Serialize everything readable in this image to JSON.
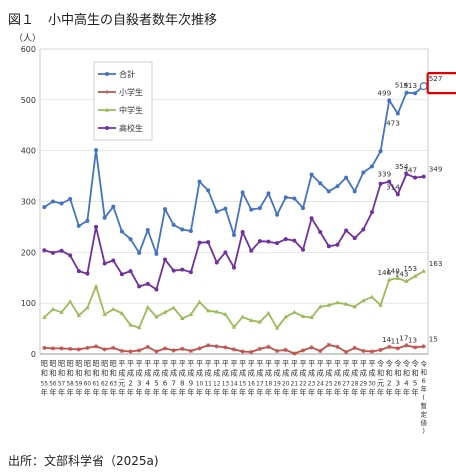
{
  "figure": {
    "number": "図１",
    "title": "小中高生の自殺者数年次推移",
    "source": "出所：文部科学省（2025a)"
  },
  "chart_data": {
    "type": "line",
    "yunit": "（人）",
    "ylim": [
      0,
      600
    ],
    "yticks": [
      0,
      100,
      200,
      300,
      400,
      500,
      600
    ],
    "grid": true,
    "legend_position": "top-left",
    "x": [
      "昭和55年",
      "昭和56年",
      "昭和57年",
      "昭和58年",
      "昭和59年",
      "昭和60年",
      "昭和61年",
      "昭和62年",
      "昭和63年",
      "平成元年",
      "平成2年",
      "平成3年",
      "平成4年",
      "平成5年",
      "平成6年",
      "平成7年",
      "平成8年",
      "平成9年",
      "平成10年",
      "平成11年",
      "平成12年",
      "平成13年",
      "平成14年",
      "平成15年",
      "平成16年",
      "平成17年",
      "平成18年",
      "平成19年",
      "平成20年",
      "平成21年",
      "平成22年",
      "平成23年",
      "平成24年",
      "平成25年",
      "平成26年",
      "平成27年",
      "平成28年",
      "平成29年",
      "平成30年",
      "令和元年",
      "令和2年",
      "令和3年",
      "令和4年",
      "令和5年",
      "令和6年(暫定値)"
    ],
    "x_tick_labels": [
      {
        "era": "昭和",
        "num": "55",
        "unit": "年"
      },
      {
        "era": "昭和",
        "num": "56",
        "unit": "年"
      },
      {
        "era": "昭和",
        "num": "57",
        "unit": "年"
      },
      {
        "era": "昭和",
        "num": "58",
        "unit": "年"
      },
      {
        "era": "昭和",
        "num": "59",
        "unit": "年"
      },
      {
        "era": "昭和",
        "num": "60",
        "unit": "年"
      },
      {
        "era": "昭和",
        "num": "61",
        "unit": "年"
      },
      {
        "era": "昭和",
        "num": "62",
        "unit": "年"
      },
      {
        "era": "昭和",
        "num": "63",
        "unit": "年"
      },
      {
        "era": "平成",
        "num": "元",
        "unit": "年"
      },
      {
        "era": "平成",
        "num": "2",
        "unit": "年"
      },
      {
        "era": "平成",
        "num": "3",
        "unit": "年"
      },
      {
        "era": "平成",
        "num": "4",
        "unit": "年"
      },
      {
        "era": "平成",
        "num": "5",
        "unit": "年"
      },
      {
        "era": "平成",
        "num": "6",
        "unit": "年"
      },
      {
        "era": "平成",
        "num": "7",
        "unit": "年"
      },
      {
        "era": "平成",
        "num": "8",
        "unit": "年"
      },
      {
        "era": "平成",
        "num": "9",
        "unit": "年"
      },
      {
        "era": "平成",
        "num": "10",
        "unit": "年"
      },
      {
        "era": "平成",
        "num": "11",
        "unit": "年"
      },
      {
        "era": "平成",
        "num": "12",
        "unit": "年"
      },
      {
        "era": "平成",
        "num": "13",
        "unit": "年"
      },
      {
        "era": "平成",
        "num": "14",
        "unit": "年"
      },
      {
        "era": "平成",
        "num": "15",
        "unit": "年"
      },
      {
        "era": "平成",
        "num": "16",
        "unit": "年"
      },
      {
        "era": "平成",
        "num": "17",
        "unit": "年"
      },
      {
        "era": "平成",
        "num": "18",
        "unit": "年"
      },
      {
        "era": "平成",
        "num": "19",
        "unit": "年"
      },
      {
        "era": "平成",
        "num": "20",
        "unit": "年"
      },
      {
        "era": "平成",
        "num": "21",
        "unit": "年"
      },
      {
        "era": "平成",
        "num": "22",
        "unit": "年"
      },
      {
        "era": "平成",
        "num": "23",
        "unit": "年"
      },
      {
        "era": "平成",
        "num": "24",
        "unit": "年"
      },
      {
        "era": "平成",
        "num": "25",
        "unit": "年"
      },
      {
        "era": "平成",
        "num": "26",
        "unit": "年"
      },
      {
        "era": "平成",
        "num": "27",
        "unit": "年"
      },
      {
        "era": "平成",
        "num": "28",
        "unit": "年"
      },
      {
        "era": "平成",
        "num": "29",
        "unit": "年"
      },
      {
        "era": "平成",
        "num": "30",
        "unit": "年"
      },
      {
        "era": "令和",
        "num": "元",
        "unit": "年"
      },
      {
        "era": "令和",
        "num": "2",
        "unit": "年"
      },
      {
        "era": "令和",
        "num": "3",
        "unit": "年"
      },
      {
        "era": "令和",
        "num": "4",
        "unit": "年"
      },
      {
        "era": "令和",
        "num": "5",
        "unit": "年"
      },
      {
        "era": "令和",
        "num": "6",
        "unit": "年(暫定値)"
      }
    ],
    "series": [
      {
        "name": "合計",
        "color": "#4472c4",
        "marker": "circle",
        "values": [
          289,
          300,
          296,
          305,
          252,
          262,
          401,
          268,
          290,
          241,
          226,
          199,
          244,
          197,
          285,
          254,
          245,
          242,
          339,
          322,
          280,
          286,
          234,
          318,
          284,
          287,
          316,
          274,
          308,
          306,
          287,
          353,
          336,
          320,
          330,
          347,
          320,
          357,
          369,
          399,
          499,
          473,
          514,
          513,
          527
        ],
        "data_labels": {
          "40": "499",
          "41": "473",
          "42": "514",
          "43": "513",
          "44": "527"
        }
      },
      {
        "name": "小学生",
        "color": "#c0504d",
        "marker": "asterisk",
        "values": [
          12,
          11,
          11,
          10,
          9,
          12,
          15,
          9,
          12,
          6,
          5,
          7,
          14,
          5,
          11,
          7,
          10,
          6,
          11,
          17,
          15,
          13,
          9,
          5,
          4,
          10,
          14,
          6,
          8,
          1,
          7,
          13,
          6,
          18,
          14,
          4,
          12,
          6,
          5,
          8,
          14,
          11,
          17,
          13,
          15
        ],
        "data_labels": {
          "40": "14",
          "41": "11",
          "42": "17",
          "43": "13",
          "44": "15"
        }
      },
      {
        "name": "中学生",
        "color": "#9bbb59",
        "marker": "triangle",
        "values": [
          72,
          88,
          82,
          103,
          76,
          91,
          133,
          78,
          88,
          80,
          57,
          52,
          92,
          73,
          82,
          91,
          70,
          78,
          102,
          85,
          83,
          78,
          53,
          73,
          66,
          63,
          80,
          51,
          73,
          82,
          74,
          72,
          93,
          96,
          101,
          98,
          93,
          105,
          112,
          96,
          146,
          149,
          143,
          153,
          163
        ],
        "data_labels": {
          "40": "146",
          "41": "149",
          "42": "143",
          "43": "153",
          "44": "163"
        }
      },
      {
        "name": "高校生",
        "color": "#7030a0",
        "marker": "circle",
        "values": [
          204,
          199,
          203,
          194,
          163,
          158,
          250,
          178,
          184,
          157,
          163,
          133,
          138,
          127,
          186,
          164,
          166,
          161,
          219,
          220,
          180,
          200,
          170,
          240,
          203,
          222,
          221,
          218,
          226,
          223,
          205,
          267,
          240,
          212,
          215,
          243,
          228,
          245,
          279,
          335,
          339,
          314,
          354,
          347,
          349
        ],
        "data_labels": {
          "40": "339",
          "41": "314",
          "42": "354",
          "43": "347",
          "44": "349"
        }
      }
    ],
    "highlight_last_point": true
  }
}
